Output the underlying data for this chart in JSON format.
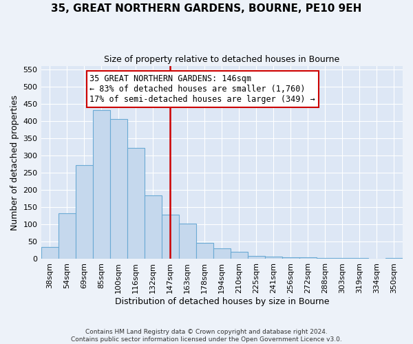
{
  "title": "35, GREAT NORTHERN GARDENS, BOURNE, PE10 9EH",
  "subtitle": "Size of property relative to detached houses in Bourne",
  "xlabel": "Distribution of detached houses by size in Bourne",
  "ylabel": "Number of detached properties",
  "bar_labels": [
    "38sqm",
    "54sqm",
    "69sqm",
    "85sqm",
    "100sqm",
    "116sqm",
    "132sqm",
    "147sqm",
    "163sqm",
    "178sqm",
    "194sqm",
    "210sqm",
    "225sqm",
    "241sqm",
    "256sqm",
    "272sqm",
    "288sqm",
    "303sqm",
    "319sqm",
    "334sqm",
    "350sqm"
  ],
  "bar_values": [
    35,
    133,
    272,
    432,
    405,
    322,
    184,
    128,
    103,
    46,
    30,
    20,
    8,
    7,
    5,
    4,
    3,
    2,
    2,
    1,
    2
  ],
  "bar_color": "#c5d8ed",
  "bar_edge_color": "#6aaad4",
  "vline_index": 7,
  "vline_color": "#cc0000",
  "annotation_text": "35 GREAT NORTHERN GARDENS: 146sqm\n← 83% of detached houses are smaller (1,760)\n17% of semi-detached houses are larger (349) →",
  "annotation_box_color": "#ffffff",
  "annotation_box_edge": "#cc0000",
  "ylim": [
    0,
    560
  ],
  "yticks": [
    0,
    50,
    100,
    150,
    200,
    250,
    300,
    350,
    400,
    450,
    500,
    550
  ],
  "footer_line1": "Contains HM Land Registry data © Crown copyright and database right 2024.",
  "footer_line2": "Contains public sector information licensed under the Open Government Licence v3.0.",
  "bg_color": "#edf2f9",
  "plot_bg_color": "#dde7f5"
}
